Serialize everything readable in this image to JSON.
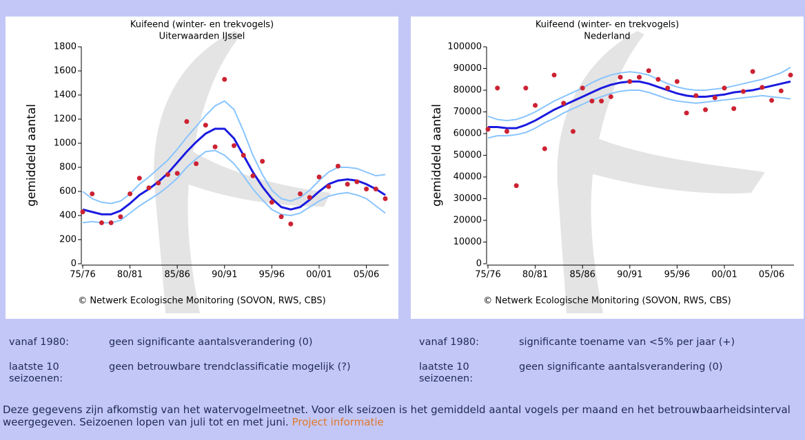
{
  "chart_data": [
    {
      "type": "line",
      "title": "Kuifeend (winter- en trekvogels)",
      "subtitle": "Uiterwaarden IJssel",
      "ylabel": "gemiddeld aantal",
      "source": "© Netwerk Ecologische Monitoring (SOVON, RWS, CBS)",
      "categories": [
        "75/76",
        null,
        null,
        null,
        null,
        "80/81",
        null,
        null,
        null,
        null,
        "85/86",
        null,
        null,
        null,
        null,
        "90/91",
        null,
        null,
        null,
        null,
        "95/96",
        null,
        null,
        null,
        null,
        "00/01",
        null,
        null,
        null,
        null,
        "05/06",
        null,
        null
      ],
      "ylim": [
        0,
        1800
      ],
      "yticks": [
        0,
        200,
        400,
        600,
        800,
        1000,
        1200,
        1400,
        1600,
        1800
      ],
      "series": [
        {
          "mode": "line",
          "color": "#88c4ff",
          "values": [
            600,
            540,
            510,
            500,
            520,
            580,
            660,
            720,
            790,
            860,
            950,
            1050,
            1140,
            1230,
            1310,
            1350,
            1280,
            1100,
            900,
            740,
            610,
            540,
            520,
            550,
            610,
            690,
            760,
            800,
            800,
            790,
            760,
            730,
            740
          ]
        },
        {
          "mode": "line",
          "color": "#88c4ff",
          "values": [
            340,
            350,
            340,
            340,
            360,
            420,
            480,
            530,
            580,
            640,
            710,
            800,
            870,
            930,
            940,
            900,
            830,
            730,
            620,
            530,
            450,
            410,
            400,
            420,
            470,
            520,
            560,
            580,
            590,
            570,
            540,
            480,
            420
          ]
        },
        {
          "mode": "line",
          "color": "#1a1ae0",
          "values": [
            450,
            430,
            410,
            410,
            440,
            500,
            570,
            620,
            680,
            750,
            840,
            930,
            1010,
            1080,
            1120,
            1120,
            1040,
            900,
            760,
            640,
            540,
            470,
            450,
            470,
            530,
            600,
            660,
            690,
            700,
            690,
            660,
            620,
            570
          ]
        },
        {
          "mode": "markers",
          "color": "#cc2233",
          "values": [
            430,
            580,
            340,
            340,
            390,
            580,
            710,
            630,
            670,
            740,
            750,
            1180,
            830,
            1150,
            970,
            1530,
            980,
            900,
            730,
            850,
            510,
            390,
            330,
            580,
            550,
            720,
            640,
            810,
            660,
            680,
            620,
            620,
            540
          ]
        }
      ]
    },
    {
      "type": "line",
      "title": "Kuifeend (winter- en trekvogels)",
      "subtitle": "Nederland",
      "ylabel": "gemiddeld aantal",
      "source": "© Netwerk Ecologische Monitoring (SOVON, RWS, CBS)",
      "categories": [
        "75/76",
        null,
        null,
        null,
        null,
        "80/81",
        null,
        null,
        null,
        null,
        "85/86",
        null,
        null,
        null,
        null,
        "90/91",
        null,
        null,
        null,
        null,
        "95/96",
        null,
        null,
        null,
        null,
        "00/01",
        null,
        null,
        null,
        null,
        "05/06",
        null,
        null
      ],
      "ylim": [
        0,
        100000
      ],
      "yticks": [
        0,
        10000,
        20000,
        30000,
        40000,
        50000,
        60000,
        70000,
        80000,
        90000,
        100000
      ],
      "series": [
        {
          "mode": "line",
          "color": "#88c4ff",
          "values": [
            68000,
            66500,
            66000,
            66500,
            68000,
            70000,
            72500,
            75000,
            77000,
            79000,
            81000,
            83500,
            85500,
            87000,
            88000,
            88500,
            88000,
            87000,
            85000,
            83000,
            81500,
            80500,
            80000,
            80000,
            80500,
            81000,
            82000,
            83000,
            84000,
            85000,
            86500,
            88000,
            90500
          ]
        },
        {
          "mode": "line",
          "color": "#88c4ff",
          "values": [
            58000,
            59000,
            59000,
            59500,
            60500,
            62500,
            65000,
            67000,
            69500,
            71500,
            73500,
            75500,
            77000,
            78500,
            79500,
            80000,
            80000,
            79000,
            77500,
            76000,
            75000,
            74500,
            74000,
            74500,
            75000,
            75500,
            76000,
            76500,
            77000,
            77500,
            77000,
            76500,
            76000
          ]
        },
        {
          "mode": "line",
          "color": "#1a1ae0",
          "values": [
            63000,
            63000,
            62500,
            62500,
            64000,
            66000,
            68500,
            71000,
            73000,
            75000,
            77000,
            79000,
            81000,
            82500,
            83500,
            84000,
            84000,
            83000,
            81500,
            80000,
            78500,
            77500,
            77000,
            77000,
            77500,
            78000,
            79000,
            79500,
            80000,
            81000,
            82000,
            83000,
            84000
          ]
        },
        {
          "mode": "markers",
          "color": "#cc2233",
          "values": [
            62000,
            81000,
            61000,
            36000,
            81000,
            73000,
            53000,
            87000,
            74000,
            61000,
            81000,
            75000,
            75000,
            77000,
            86000,
            84000,
            86000,
            89000,
            85000,
            81000,
            84000,
            69500,
            77500,
            71000,
            76500,
            81000,
            71500,
            79400,
            88600,
            81300,
            75300,
            79700,
            87000
          ]
        }
      ]
    }
  ],
  "trends": [
    {
      "rows": [
        {
          "label": "vanaf 1980:",
          "text": "geen significante aantalsverandering (0)"
        },
        {
          "label": "laatste 10 seizoenen:",
          "text": "geen betrouwbare trendclassificatie mogelijk (?)"
        }
      ]
    },
    {
      "rows": [
        {
          "label": "vanaf 1980:",
          "text": "significante toename van <5% per jaar (+)"
        },
        {
          "label": "laatste 10 seizoenen:",
          "text": "geen significante aantalsverandering (0)"
        }
      ]
    }
  ],
  "footer": {
    "text": "Deze gegevens zijn afkomstig van het watervogelmeetnet. Voor elk seizoen is het gemiddeld aantal vogels per maand en het betrouwbaarheidsinterval weergegeven. Seizoenen lopen van juli tot en met juni.",
    "link": "Project informatie"
  }
}
